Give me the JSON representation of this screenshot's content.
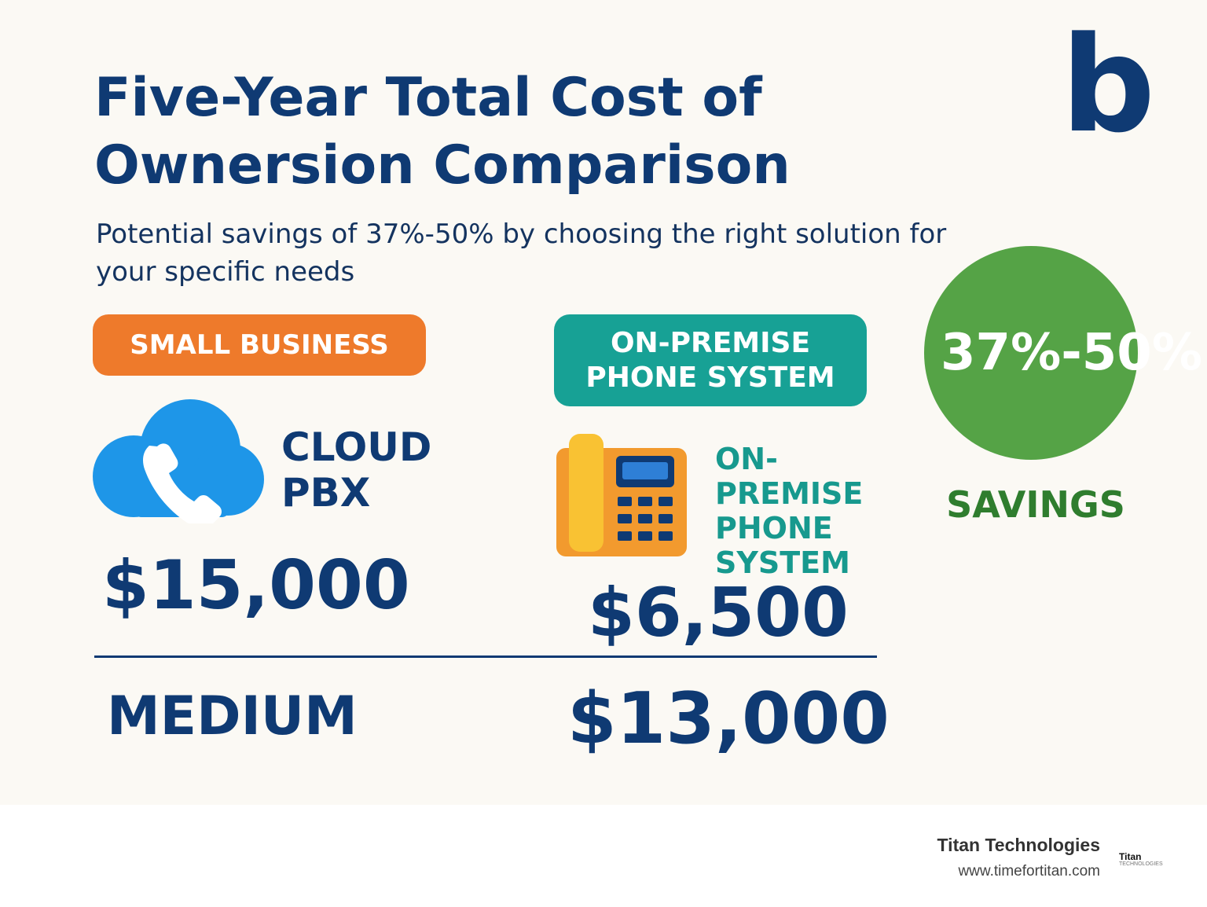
{
  "header": {
    "title": "Five-Year Total Cost of Ownersion Comparison",
    "subtitle": "Potential savings of 37%-50% by choosing the right solution for your specific needs",
    "logo_letter": "b"
  },
  "labels": {
    "small_business": "SMALL BUSINESS",
    "on_premise_pill": "ON-PREMISE PHONE SYSTEM",
    "cloud": "CLOUD PBX",
    "on_premise": "ON-PREMISE PHONE SYSTEM",
    "medium": "MEDIUM"
  },
  "prices": {
    "small_cloud": "$15,000",
    "small_onprem": "$6,500",
    "medium_onprem": "$13,000"
  },
  "savings": {
    "percent": "37%-50%",
    "label": "SAVINGS"
  },
  "footer": {
    "company": "Titan Technologies",
    "url": "www.timefortitan.com",
    "logo_text": "Titan",
    "logo_subtext": "TECHNOLOGIES"
  },
  "icons": {
    "cloud": "cloud-phone-icon",
    "desk_phone": "desk-phone-icon"
  },
  "colors": {
    "navy": "#0f3a73",
    "orange": "#ee7a2b",
    "teal": "#17a195",
    "green": "#55a346",
    "cloud_blue": "#1e96e8",
    "phone_orange": "#f29a2e",
    "handset_yellow": "#f9c233"
  }
}
